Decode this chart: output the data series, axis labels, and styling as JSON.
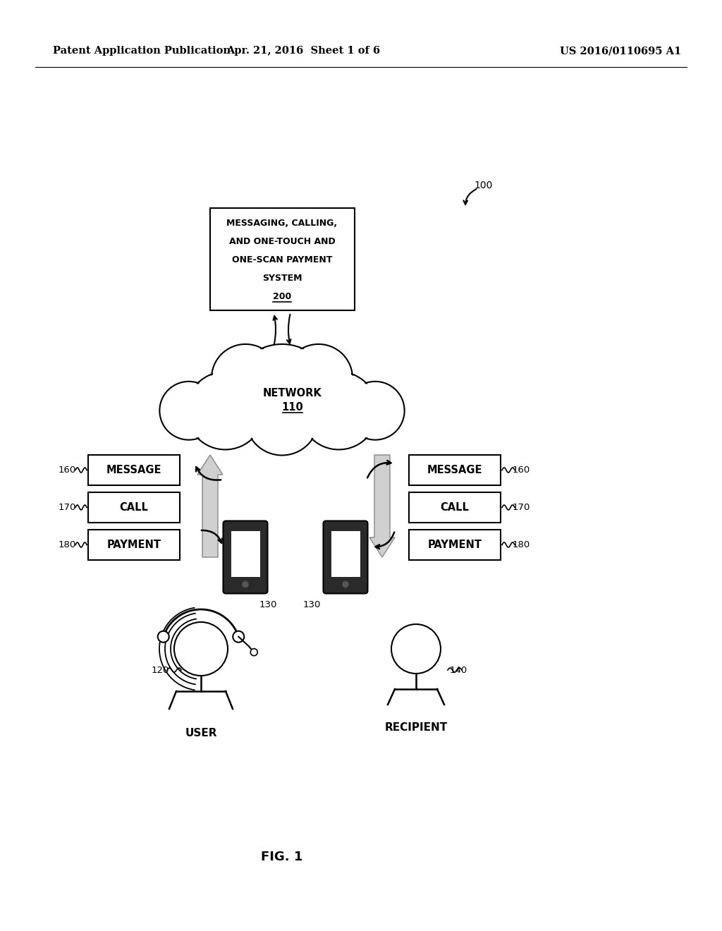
{
  "bg_color": "#ffffff",
  "header_left": "Patent Application Publication",
  "header_center": "Apr. 21, 2016  Sheet 1 of 6",
  "header_right": "US 2016/0110695 A1",
  "fig_label": "FIG. 1",
  "ref_100": "100",
  "system_box_lines": [
    "MESSAGING, CALLING,",
    "AND ONE-TOUCH AND",
    "ONE-SCAN PAYMENT",
    "SYSTEM"
  ],
  "system_box_ref": "200",
  "network_label": "NETWORK",
  "network_ref": "110",
  "left_labels": [
    "160",
    "170",
    "180"
  ],
  "left_boxes": [
    "MESSAGE",
    "CALL",
    "PAYMENT"
  ],
  "right_labels": [
    "160",
    "170",
    "180"
  ],
  "right_boxes": [
    "MESSAGE",
    "CALL",
    "PAYMENT"
  ],
  "user_label": "120",
  "user_text": "USER",
  "phone_left_label": "130",
  "phone_right_label": "130",
  "recipient_label": "140",
  "recipient_text": "RECIPIENT"
}
